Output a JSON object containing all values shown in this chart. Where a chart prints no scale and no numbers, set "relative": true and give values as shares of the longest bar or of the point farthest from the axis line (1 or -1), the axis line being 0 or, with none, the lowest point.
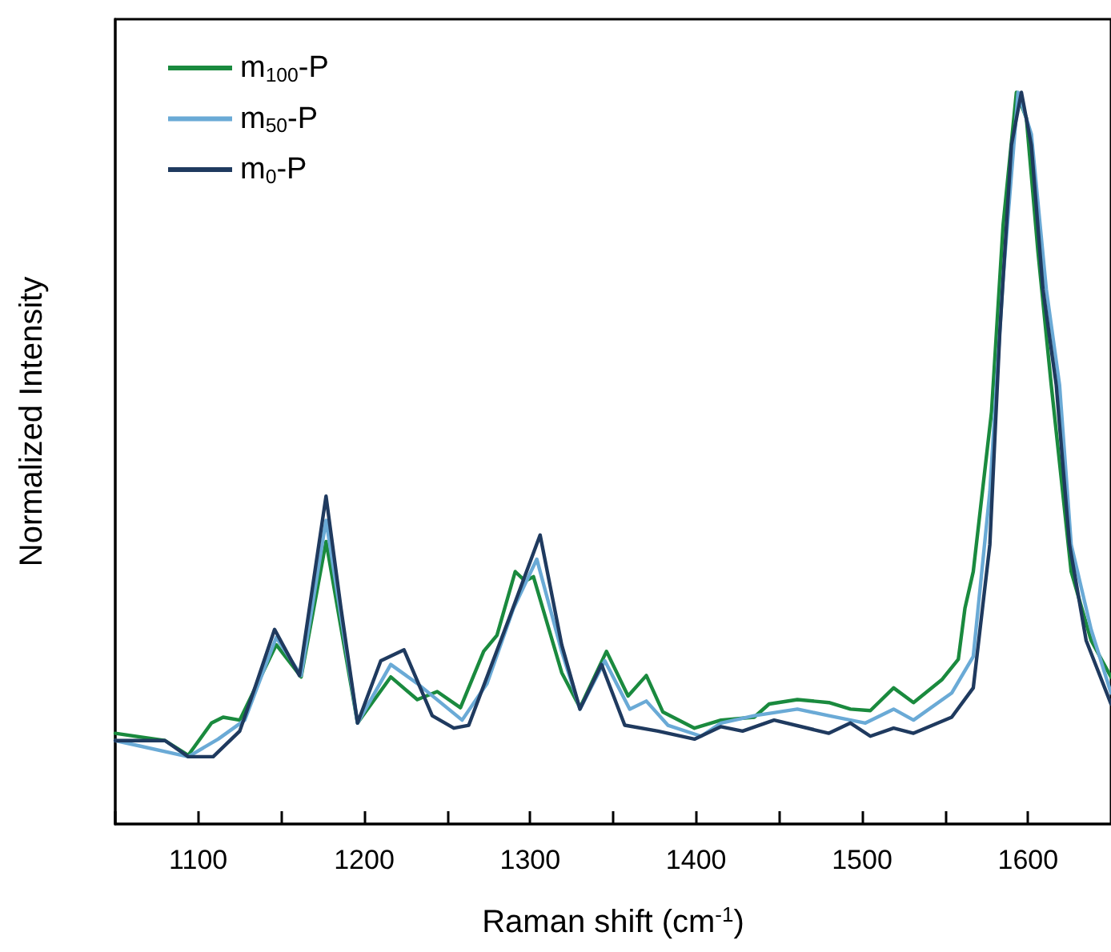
{
  "chart_data": {
    "type": "line",
    "xlabel": "Raman shift (cm$^{-1}$)",
    "ylabel": "Normalized Intensity",
    "relative": true,
    "xlim": [
      1050,
      1650
    ],
    "xticks": [
      {
        "value": 1050,
        "label": null
      },
      1100,
      {
        "value": 1150,
        "label": null
      },
      1200,
      {
        "value": 1250,
        "label": null
      },
      1300,
      {
        "value": 1350,
        "label": null
      },
      1400,
      {
        "value": 1450,
        "label": null
      },
      1500,
      {
        "value": 1550,
        "label": null
      },
      1600
    ],
    "legend": "top left",
    "grid": false,
    "marker": "none",
    "line_style": "solid",
    "series": [
      {
        "name": "m$_{100}$-P",
        "color": "#1a8a3e",
        "x": [
          1050,
          1080,
          1094,
          1108,
          1115,
          1125,
          1147,
          1162,
          1177,
          1196,
          1216,
          1232,
          1244,
          1258,
          1272,
          1280,
          1291,
          1297,
          1302,
          1319,
          1330,
          1346,
          1359,
          1370,
          1380,
          1399,
          1415,
          1435,
          1444,
          1461,
          1480,
          1493,
          1505,
          1519,
          1531,
          1548,
          1558,
          1562,
          1567,
          1578,
          1585,
          1593,
          1599,
          1606,
          1614,
          1626,
          1638,
          1650
        ],
        "values": [
          0.124,
          0.114,
          0.094,
          0.138,
          0.146,
          0.142,
          0.245,
          0.201,
          0.386,
          0.138,
          0.201,
          0.17,
          0.181,
          0.159,
          0.236,
          0.258,
          0.345,
          0.332,
          0.338,
          0.207,
          0.159,
          0.236,
          0.175,
          0.203,
          0.153,
          0.131,
          0.142,
          0.146,
          0.164,
          0.17,
          0.166,
          0.157,
          0.155,
          0.186,
          0.166,
          0.197,
          0.225,
          0.295,
          0.345,
          0.563,
          0.819,
          1,
          0.965,
          0.782,
          0.6,
          0.345,
          0.251,
          0.201
        ]
      },
      {
        "name": "m$_{50}$-P",
        "color": "#6aaad6",
        "x": [
          1050,
          1094,
          1112,
          1128,
          1147,
          1162,
          1177,
          1196,
          1216,
          1232,
          1259,
          1274,
          1290,
          1304,
          1319,
          1330,
          1345,
          1360,
          1370,
          1383,
          1403,
          1415,
          1435,
          1461,
          1480,
          1502,
          1519,
          1531,
          1554,
          1567,
          1577,
          1585,
          1594,
          1602,
          1611,
          1619,
          1626,
          1638,
          1650
        ],
        "values": [
          0.114,
          0.092,
          0.116,
          0.142,
          0.255,
          0.203,
          0.415,
          0.138,
          0.218,
          0.192,
          0.142,
          0.192,
          0.295,
          0.362,
          0.236,
          0.157,
          0.223,
          0.157,
          0.168,
          0.135,
          0.12,
          0.138,
          0.148,
          0.157,
          0.148,
          0.138,
          0.157,
          0.142,
          0.179,
          0.229,
          0.454,
          0.747,
          1,
          0.943,
          0.731,
          0.6,
          0.382,
          0.266,
          0.179
        ]
      },
      {
        "name": "m$_{0}$-P",
        "color": "#1f3a5f",
        "x": [
          1050,
          1080,
          1094,
          1109,
          1125,
          1135,
          1146,
          1161,
          1177,
          1186,
          1196,
          1210,
          1224,
          1241,
          1254,
          1263,
          1287,
          1306,
          1319,
          1330,
          1343,
          1357,
          1377,
          1399,
          1415,
          1428,
          1447,
          1480,
          1493,
          1505,
          1519,
          1531,
          1554,
          1567,
          1577,
          1583,
          1590,
          1596,
          1602,
          1609,
          1617,
          1625,
          1635,
          1650
        ],
        "values": [
          0.114,
          0.114,
          0.092,
          0.092,
          0.127,
          0.192,
          0.266,
          0.203,
          0.448,
          0.295,
          0.138,
          0.223,
          0.238,
          0.148,
          0.131,
          0.135,
          0.279,
          0.395,
          0.245,
          0.157,
          0.218,
          0.135,
          0.127,
          0.116,
          0.133,
          0.127,
          0.142,
          0.124,
          0.138,
          0.12,
          0.131,
          0.124,
          0.146,
          0.186,
          0.382,
          0.672,
          0.928,
          1,
          0.928,
          0.731,
          0.6,
          0.382,
          0.251,
          0.164
        ]
      }
    ]
  }
}
